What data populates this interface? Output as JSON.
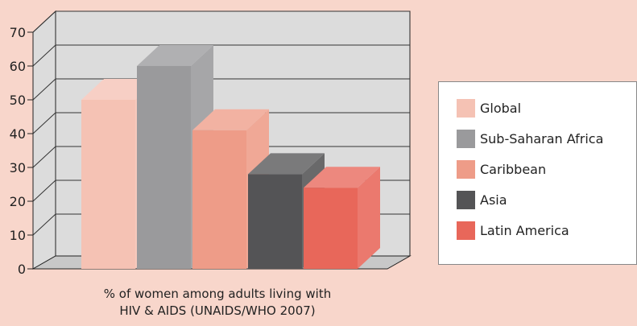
{
  "chart_data": {
    "type": "bar",
    "categories": [
      "Global",
      "Sub-Saharan Africa",
      "Caribbean",
      "Asia",
      "Latin America"
    ],
    "values": [
      50,
      60,
      41,
      28,
      24
    ],
    "colors": [
      "#f5c2b4",
      "#9a9a9c",
      "#ee9c88",
      "#545456",
      "#e8675a"
    ],
    "xlabel_lines": [
      "% of women among adults living with",
      "HIV & AIDS (UNAIDS/WHO 2007)"
    ],
    "ylim": [
      0,
      70
    ],
    "yticks": [
      0,
      10,
      20,
      30,
      40,
      50,
      60,
      70
    ],
    "grid": true,
    "style": "3d",
    "legend": {
      "position": "right",
      "entries": [
        "Global",
        "Sub-Saharan Africa",
        "Caribbean",
        "Asia",
        "Latin America"
      ]
    }
  }
}
